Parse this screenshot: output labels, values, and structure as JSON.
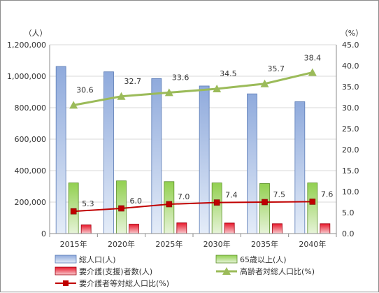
{
  "chart_data": {
    "type": "bar",
    "categories": [
      "2015年",
      "2020年",
      "2025年",
      "2030年",
      "2035年",
      "2040年"
    ],
    "left_unit": "（人）",
    "right_unit": "（%）",
    "left_ylim": [
      0,
      1200000
    ],
    "left_ticks": [
      "0",
      "200,000",
      "400,000",
      "600,000",
      "800,000",
      "1,000,000",
      "1,200,000"
    ],
    "right_ylim": [
      0,
      45
    ],
    "right_ticks": [
      "0.0",
      "5.0",
      "10.0",
      "15.0",
      "20.0",
      "25.0",
      "30.0",
      "35.0",
      "40.0",
      "45.0"
    ],
    "grid": true,
    "legend_position": "bottom",
    "bar_series": [
      {
        "name": "総人口(人)",
        "color": "#8faadc",
        "values": [
          1062000,
          1028000,
          985000,
          938000,
          888000,
          838000
        ]
      },
      {
        "name": "65歳以上(人)",
        "color": "#92d050",
        "values": [
          322000,
          335000,
          330000,
          322000,
          318000,
          322000
        ]
      },
      {
        "name": "要介護(支援)者数(人)",
        "color": "#e8192c",
        "values": [
          55000,
          60000,
          68000,
          67000,
          63000,
          63000
        ]
      }
    ],
    "line_series": [
      {
        "name": "高齢者対総人口比(%)",
        "color": "#9bbb59",
        "marker": "triangle",
        "values": [
          30.6,
          32.7,
          33.6,
          34.5,
          35.7,
          38.4
        ],
        "labels": [
          "30.6",
          "32.7",
          "33.6",
          "34.5",
          "35.7",
          "38.4"
        ]
      },
      {
        "name": "要介護者等対総人口比(%)",
        "color": "#c00000",
        "marker": "square",
        "values": [
          5.3,
          6.0,
          7.0,
          7.4,
          7.5,
          7.6
        ],
        "labels": [
          "5.3",
          "6.0",
          "7.0",
          "7.4",
          "7.5",
          "7.6"
        ]
      }
    ]
  }
}
